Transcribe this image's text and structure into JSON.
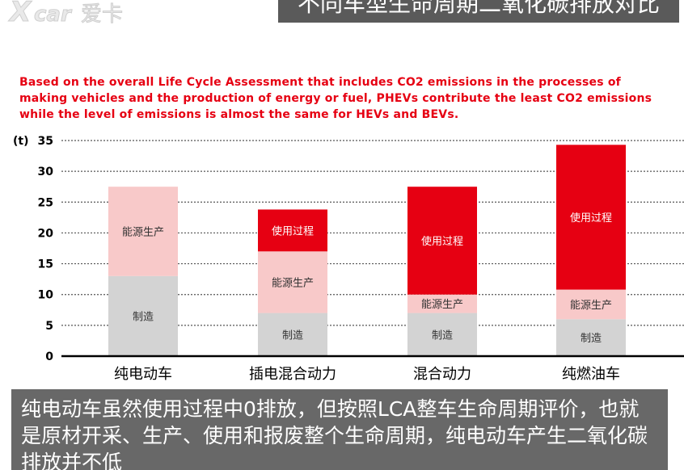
{
  "header": {
    "logo_text": "爱卡",
    "title": "不同车型生命周期二氧化碳排放对比"
  },
  "subtitle": "Based on the overall Life Cycle Assessment that includes CO2 emissions in the processes of making vehicles and the production of energy or fuel, PHEVs contribute the least CO2 emissions while the level of emissions is almost the same for HEVs and BEVs.",
  "caption": "纯电动车虽然使用过程中0排放，但按照LCA整车生命周期评价，也就是原材开采、生产、使用和报废整个生命周期，纯电动车产生二氧化碳排放并不低",
  "colors": {
    "manufacturing": "#d3d3d3",
    "energy_production": "#f8c9c9",
    "usage": "#e60012",
    "axis": "#000000",
    "title_bg": "#5a5a5a",
    "subtitle_text": "#e60012"
  },
  "chart_data": {
    "type": "bar",
    "stacked": true,
    "unit_label": "(t)",
    "categories": [
      "纯电动车",
      "插电混合动力",
      "混合动力",
      "纯燃油车"
    ],
    "series": [
      {
        "name": "制造",
        "values": [
          13,
          7,
          7,
          6
        ]
      },
      {
        "name": "能源生产",
        "values": [
          14.5,
          10,
          3,
          4.8
        ]
      },
      {
        "name": "使用过程",
        "values": [
          0,
          6.8,
          17.5,
          23.5
        ]
      }
    ],
    "ylim": [
      0,
      35
    ],
    "yticks": [
      0,
      5,
      10,
      15,
      20,
      25,
      30,
      35
    ],
    "grid": true,
    "legend": "none"
  }
}
